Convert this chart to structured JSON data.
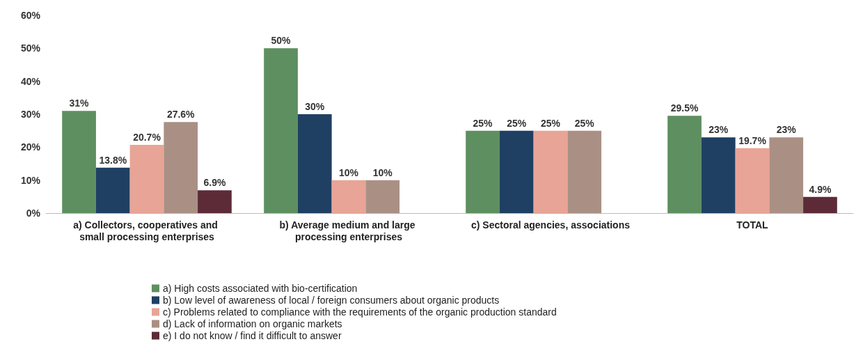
{
  "chart_data": {
    "type": "bar",
    "categories": [
      "a) Collectors, cooperatives and small processing enterprises",
      "b) Average medium and large processing enterprises",
      "c) Sectoral agencies, associations",
      "TOTAL"
    ],
    "series": [
      {
        "name": "a) High costs associated with bio-certification",
        "color": "#5e8f60",
        "values": [
          31,
          50,
          25,
          29.5
        ],
        "value_labels": [
          "31%",
          "50%",
          "25%",
          "29.5%"
        ]
      },
      {
        "name": "b) Low level of awareness of local / foreign consumers about organic products",
        "color": "#1f4063",
        "values": [
          13.8,
          30,
          25,
          23
        ],
        "value_labels": [
          "13.8%",
          "30%",
          "25%",
          "23%"
        ]
      },
      {
        "name": "c) Problems related to compliance with the requirements of the organic production standard",
        "color": "#e8a496",
        "values": [
          20.7,
          10,
          25,
          19.7
        ],
        "value_labels": [
          "20.7%",
          "10%",
          "25%",
          "19.7%"
        ]
      },
      {
        "name": "d) Lack of information on organic markets",
        "color": "#aa9084",
        "values": [
          27.6,
          10,
          25,
          23
        ],
        "value_labels": [
          "27.6%",
          "10%",
          "25%",
          "23%"
        ]
      },
      {
        "name": "e) I do not know / find it difficult to answer",
        "color": "#5c2b37",
        "values": [
          6.9,
          null,
          null,
          4.9
        ],
        "value_labels": [
          "6.9%",
          null,
          null,
          "4.9%"
        ]
      }
    ],
    "ylim": [
      0,
      60
    ],
    "yticks": [
      {
        "value": 0,
        "label": "0%"
      },
      {
        "value": 10,
        "label": "10%"
      },
      {
        "value": 20,
        "label": "20%"
      },
      {
        "value": 30,
        "label": "30%"
      },
      {
        "value": 40,
        "label": "40%"
      },
      {
        "value": 50,
        "label": "50%"
      },
      {
        "value": 60,
        "label": "60%"
      }
    ],
    "legend": "bottom"
  }
}
